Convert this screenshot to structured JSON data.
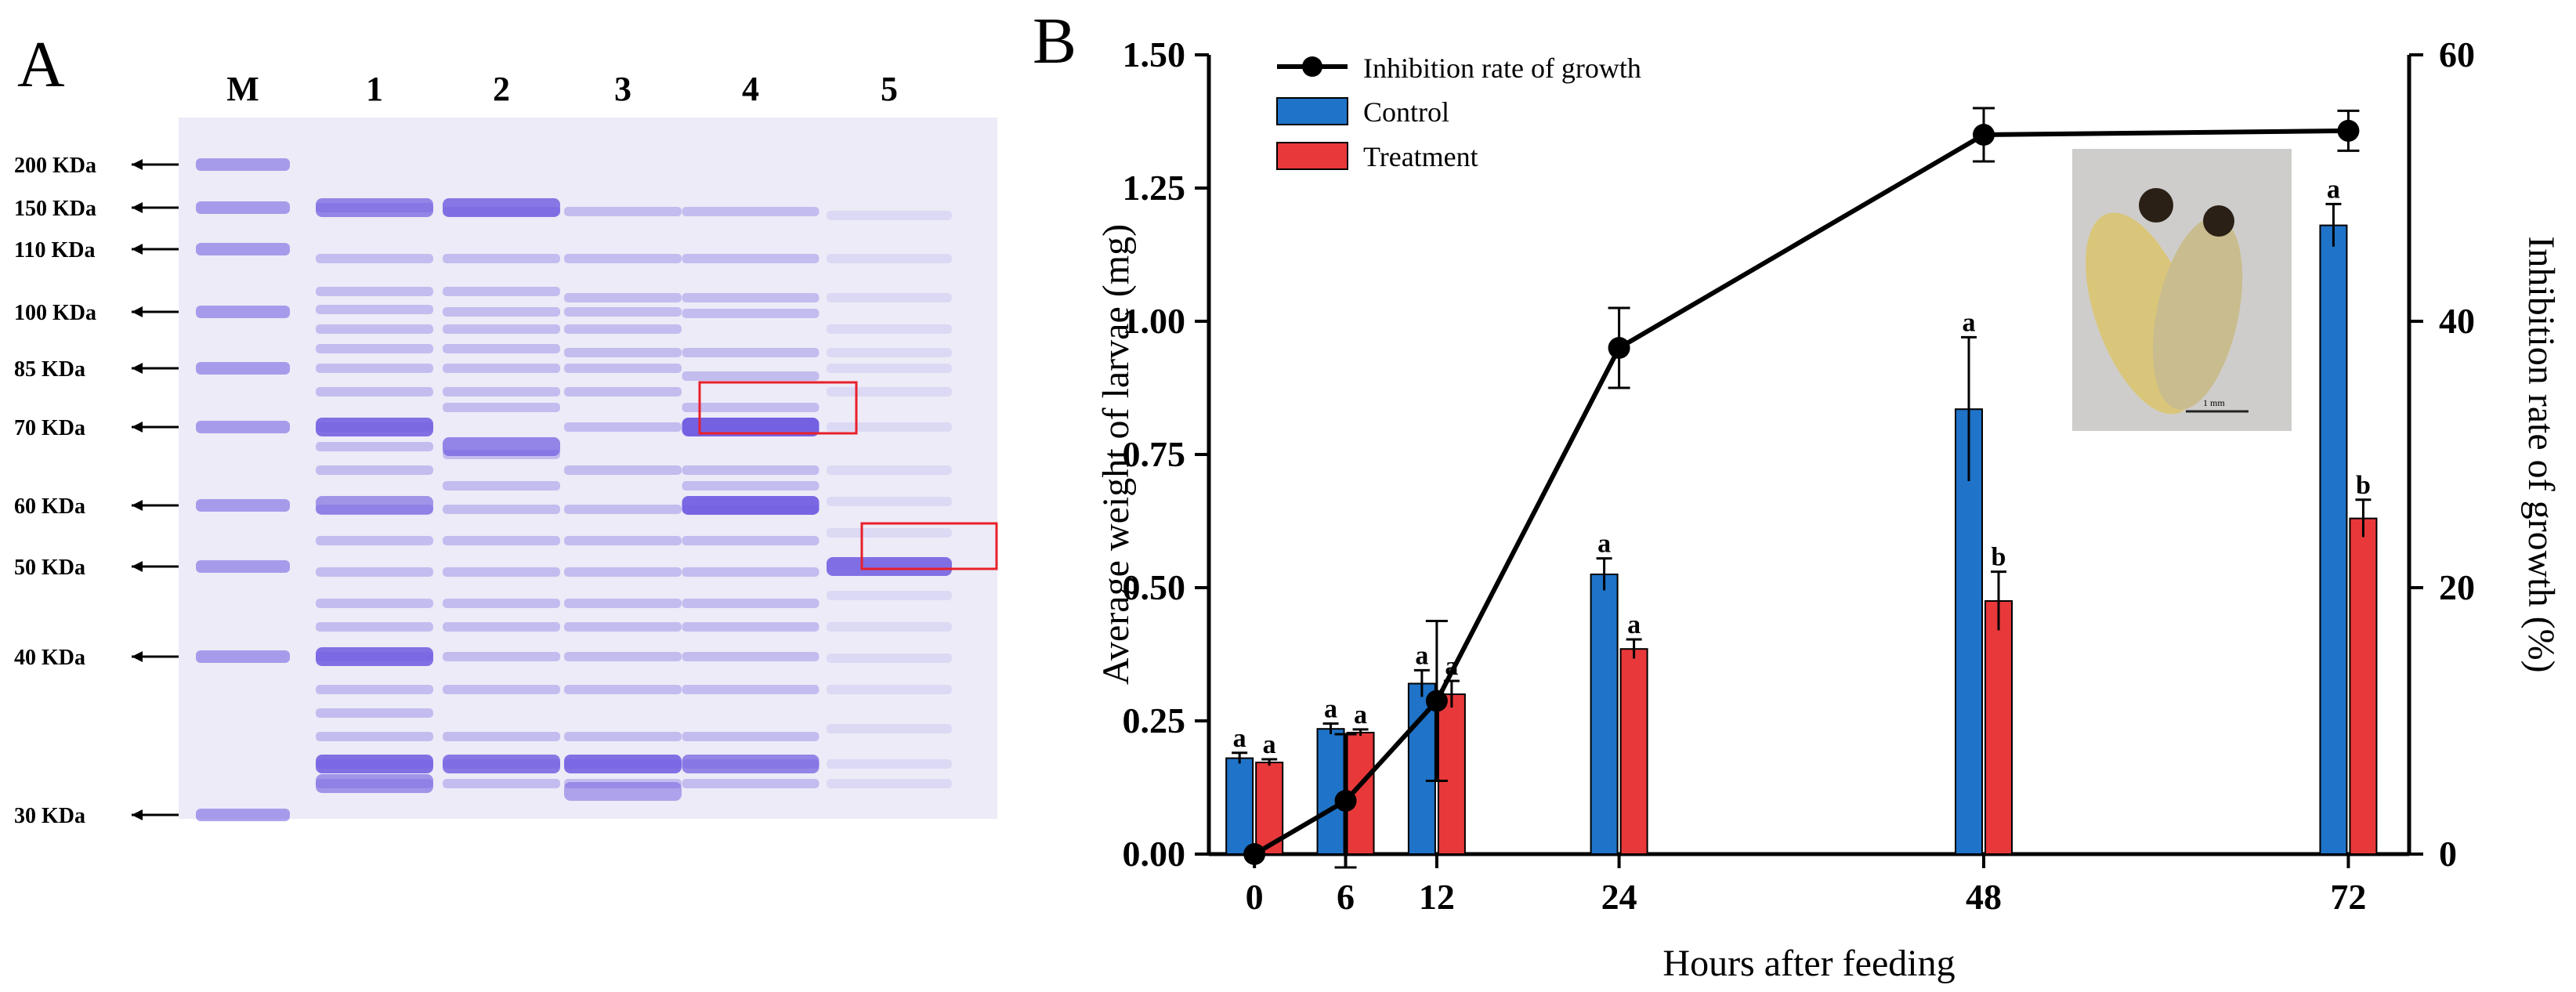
{
  "panel_a": {
    "label": "A",
    "lane_labels": [
      "M",
      "1",
      "2",
      "3",
      "4",
      "5"
    ],
    "markers": [
      "200 KDa",
      "150 KDa",
      "110 KDa",
      "100 KDa",
      "85 KDa",
      "70 KDa",
      "60 KDa",
      "50 KDa",
      "40 KDa",
      "30 KDa"
    ],
    "gel_color": "#ecebf7",
    "band_color": "#6e5ae0",
    "highlight_color": "#e8202a"
  },
  "panel_b": {
    "label": "B",
    "inset_image": "larva-photo",
    "inset_scale_label": "1 mm"
  },
  "chart_data": {
    "type": "bar",
    "x": [
      0,
      6,
      12,
      24,
      48,
      72
    ],
    "xlabel": "Hours after feeding",
    "ylabel": "Average weight of larvae (mg)",
    "y2label": "Inhibition rate of growth (%)",
    "ylim": [
      0,
      1.5
    ],
    "yticks": [
      "0.00",
      "0.25",
      "0.50",
      "0.75",
      "1.00",
      "1.25",
      "1.50"
    ],
    "y2lim": [
      0,
      60
    ],
    "y2ticks": [
      "0",
      "20",
      "40",
      "60"
    ],
    "xticks": [
      "0",
      "6",
      "12",
      "24",
      "48",
      "72"
    ],
    "legend_position": "top-left",
    "series": [
      {
        "name": "Control",
        "kind": "bar",
        "color": "#1f73c8",
        "values": [
          0.18,
          0.235,
          0.32,
          0.525,
          0.835,
          1.18
        ],
        "errors": [
          0.01,
          0.01,
          0.025,
          0.03,
          0.135,
          0.04
        ],
        "letters": [
          "a",
          "a",
          "a",
          "a",
          "a",
          "a"
        ]
      },
      {
        "name": "Treatment",
        "kind": "bar",
        "color": "#e8383a",
        "values": [
          0.172,
          0.228,
          0.3,
          0.385,
          0.475,
          0.63
        ],
        "errors": [
          0.006,
          0.006,
          0.025,
          0.018,
          0.055,
          0.035
        ],
        "letters": [
          "a",
          "a",
          "a",
          "a",
          "b",
          "b"
        ]
      },
      {
        "name": "Inhibition rate of growth",
        "kind": "line",
        "axis": "right",
        "color": "#000000",
        "values": [
          0,
          4,
          11.5,
          38,
          54,
          54.3
        ],
        "errors": [
          0,
          5,
          6,
          3,
          2,
          1.5
        ]
      }
    ]
  }
}
